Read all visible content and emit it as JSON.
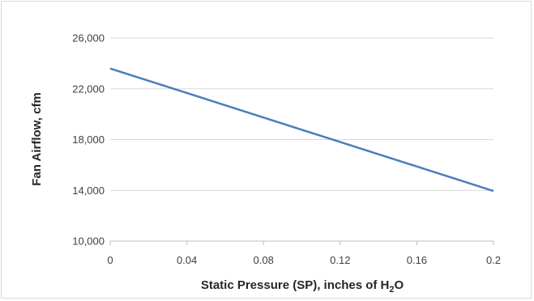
{
  "chart_data": {
    "type": "line",
    "title": "",
    "xlabel": "Static Pressure (SP), inches of H",
    "xlabel_subscript": "2",
    "xlabel_suffix": "O",
    "ylabel": "Fan Airflow, cfm",
    "x_ticks": [
      "0",
      "0.04",
      "0.08",
      "0.12",
      "0.16",
      "0.2"
    ],
    "x_tick_values": [
      0,
      0.04,
      0.08,
      0.12,
      0.16,
      0.2
    ],
    "y_ticks": [
      "10,000",
      "14,000",
      "18,000",
      "22,000",
      "26,000"
    ],
    "y_tick_values": [
      10000,
      14000,
      18000,
      22000,
      26000
    ],
    "xlim": [
      0,
      0.2
    ],
    "ylim": [
      10000,
      26000
    ],
    "grid": "horizontal",
    "series": [
      {
        "x": [
          0,
          0.2
        ],
        "y": [
          23600,
          13950
        ],
        "color": "#4a7ebb"
      }
    ]
  }
}
